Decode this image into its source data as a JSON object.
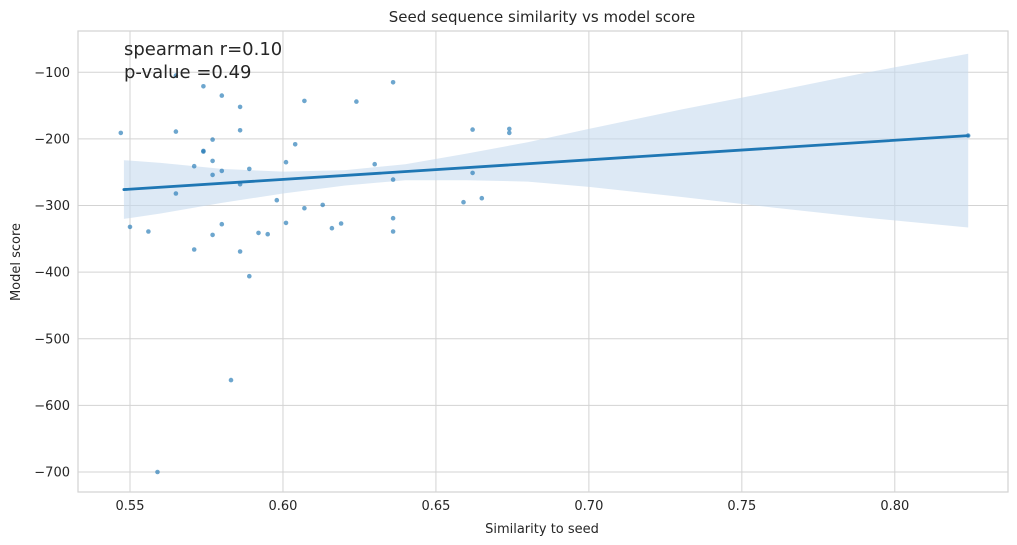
{
  "chart_data": {
    "type": "scatter",
    "title": "Seed sequence similarity vs model score",
    "xlabel": "Similarity to seed",
    "ylabel": "Model score",
    "xlim": [
      0.533,
      0.837
    ],
    "ylim": [
      -730,
      -38
    ],
    "xticks": [
      0.55,
      0.6,
      0.65,
      0.7,
      0.75,
      0.8
    ],
    "xtick_labels": [
      "0.55",
      "0.60",
      "0.65",
      "0.70",
      "0.75",
      "0.80"
    ],
    "yticks": [
      -100,
      -200,
      -300,
      -400,
      -500,
      -600,
      -700
    ],
    "ytick_labels": [
      "−100",
      "−200",
      "−300",
      "−400",
      "−500",
      "−600",
      "−700"
    ],
    "grid": true,
    "annotations": [
      "spearman r=0.10",
      "p-value =0.49"
    ],
    "colors": {
      "points": "#1f77b4",
      "line": "#1f77b4",
      "band": "#c6dbef",
      "grid": "#d3d3d3"
    },
    "points": [
      [
        0.547,
        -191
      ],
      [
        0.55,
        -332
      ],
      [
        0.556,
        -339
      ],
      [
        0.559,
        -700
      ],
      [
        0.565,
        -105
      ],
      [
        0.565,
        -189
      ],
      [
        0.565,
        -282
      ],
      [
        0.571,
        -241
      ],
      [
        0.571,
        -366
      ],
      [
        0.574,
        -121
      ],
      [
        0.574,
        -218
      ],
      [
        0.574,
        -219
      ],
      [
        0.577,
        -201
      ],
      [
        0.577,
        -233
      ],
      [
        0.577,
        -254
      ],
      [
        0.577,
        -344
      ],
      [
        0.58,
        -135
      ],
      [
        0.58,
        -248
      ],
      [
        0.58,
        -328
      ],
      [
        0.583,
        -562
      ],
      [
        0.586,
        -152
      ],
      [
        0.586,
        -187
      ],
      [
        0.586,
        -268
      ],
      [
        0.586,
        -369
      ],
      [
        0.589,
        -245
      ],
      [
        0.589,
        -406
      ],
      [
        0.592,
        -341
      ],
      [
        0.595,
        -343
      ],
      [
        0.598,
        -292
      ],
      [
        0.601,
        -235
      ],
      [
        0.601,
        -326
      ],
      [
        0.604,
        -208
      ],
      [
        0.607,
        -143
      ],
      [
        0.607,
        -304
      ],
      [
        0.613,
        -299
      ],
      [
        0.616,
        -334
      ],
      [
        0.619,
        -327
      ],
      [
        0.63,
        -238
      ],
      [
        0.624,
        -144
      ],
      [
        0.636,
        -115
      ],
      [
        0.636,
        -261
      ],
      [
        0.636,
        -319
      ],
      [
        0.636,
        -339
      ],
      [
        0.659,
        -295
      ],
      [
        0.662,
        -186
      ],
      [
        0.662,
        -251
      ],
      [
        0.665,
        -289
      ],
      [
        0.674,
        -185
      ],
      [
        0.674,
        -191
      ],
      [
        0.824,
        -195
      ]
    ],
    "regression": {
      "x": [
        0.548,
        0.824
      ],
      "y": [
        -276,
        -195
      ]
    },
    "confidence_band": {
      "x": [
        0.548,
        0.56,
        0.58,
        0.6,
        0.62,
        0.64,
        0.66,
        0.68,
        0.7,
        0.73,
        0.76,
        0.79,
        0.824
      ],
      "upper": [
        -232,
        -236,
        -245,
        -249,
        -247,
        -238,
        -222,
        -205,
        -185,
        -156,
        -129,
        -101,
        -72
      ],
      "lower": [
        -320,
        -312,
        -296,
        -282,
        -270,
        -262,
        -262,
        -264,
        -272,
        -287,
        -303,
        -318,
        -333
      ]
    }
  }
}
